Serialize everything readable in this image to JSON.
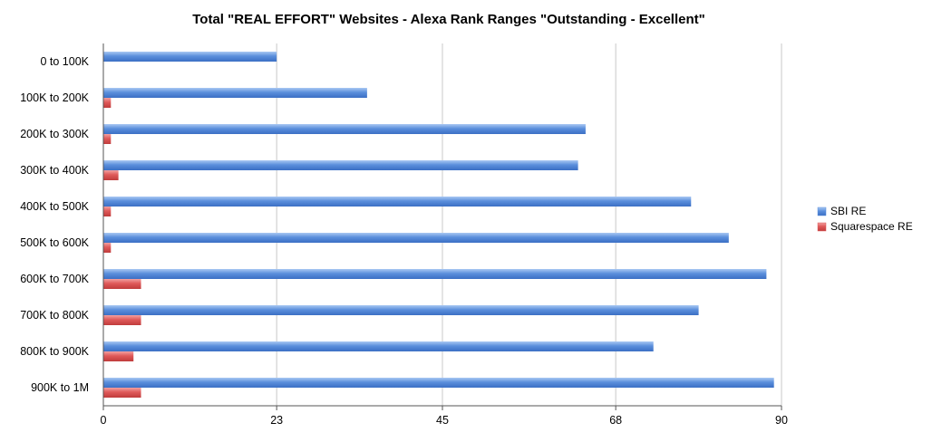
{
  "chart_data": {
    "type": "bar",
    "orientation": "horizontal",
    "title": "Total \"REAL EFFORT\" Websites - Alexa Rank Ranges \"Outstanding - Excellent\"",
    "xlabel": "",
    "ylabel": "",
    "categories": [
      "0 to 100K",
      "100K to 200K",
      "200K to 300K",
      "300K to 400K",
      "400K to 500K",
      "500K to 600K",
      "600K to 700K",
      "700K to 800K",
      "800K to 900K",
      "900K to 1M"
    ],
    "series": [
      {
        "name": "SBI RE",
        "color": "#5b8fdc",
        "values": [
          23,
          35,
          64,
          63,
          78,
          83,
          88,
          79,
          73,
          89
        ]
      },
      {
        "name": "Squarespace RE",
        "color": "#df5a5a",
        "values": [
          0,
          1,
          1,
          2,
          1,
          1,
          5,
          5,
          4,
          5
        ]
      }
    ],
    "xticks": [
      "0",
      "23",
      "45",
      "68",
      "90"
    ],
    "xlim": [
      0,
      90
    ],
    "grid": true,
    "legend_position": "right"
  }
}
